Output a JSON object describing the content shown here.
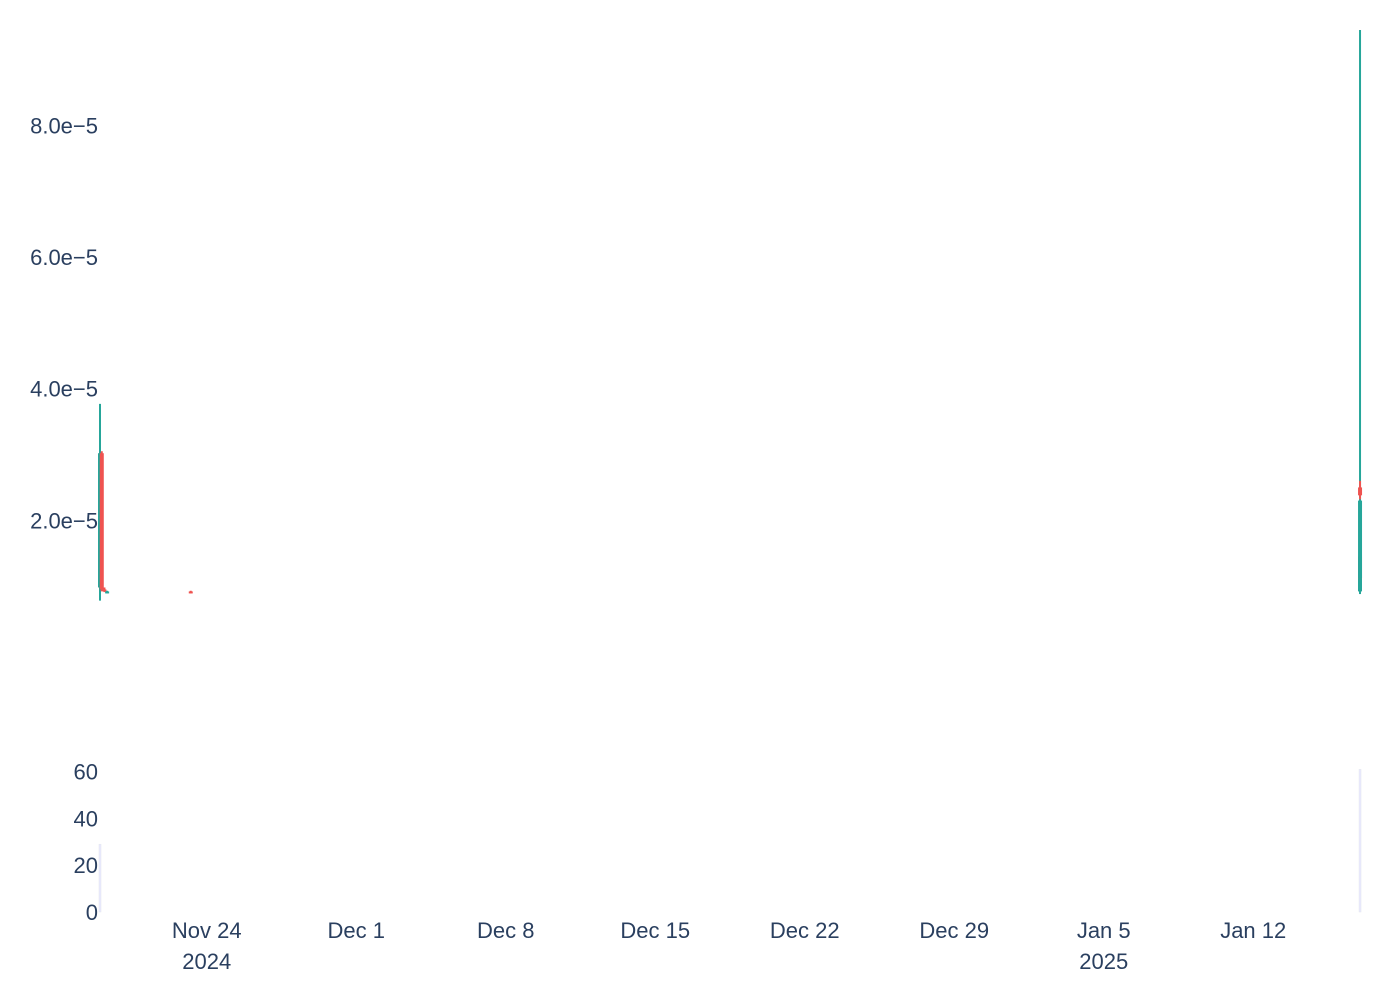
{
  "chart_data": [
    {
      "type": "candlestick",
      "title": "",
      "xlabel": "",
      "ylabel": "",
      "x_range": [
        "2024-11-19",
        "2025-01-17"
      ],
      "ylim": [
        3e-07,
        9.45e-05
      ],
      "yticks": [
        {
          "value": 2e-05,
          "label": "2.0e−5"
        },
        {
          "value": 4e-05,
          "label": "4.0e−5"
        },
        {
          "value": 6e-05,
          "label": "6.0e−5"
        },
        {
          "value": 8e-05,
          "label": "8.0e−5"
        }
      ],
      "grid": false,
      "colors": {
        "increasing": "#26a69a",
        "decreasing": "#ef5350"
      },
      "candles": [
        {
          "t": "2024-11-19T00:00",
          "open": 9.8e-06,
          "high": 3.77e-05,
          "low": 7.8e-06,
          "close": 3.02e-05
        },
        {
          "t": "2024-11-19T02:00",
          "open": 3.02e-05,
          "high": 3.05e-05,
          "low": 9.2e-06,
          "close": 9.5e-06
        },
        {
          "t": "2024-11-19T05:00",
          "open": 9.5e-06,
          "high": 9.8e-06,
          "low": 9.1e-06,
          "close": 9.2e-06
        },
        {
          "t": "2024-11-19T08:00",
          "open": 9.1e-06,
          "high": 9.3e-06,
          "low": 8.9e-06,
          "close": 9.2e-06
        },
        {
          "t": "2024-11-23T06:00",
          "open": 9.2e-06,
          "high": 9.3e-06,
          "low": 8.9e-06,
          "close": 9e-06
        },
        {
          "t": "2025-01-17T00:00",
          "open": 9.2e-06,
          "high": 1.7e-05,
          "low": 8.8e-06,
          "close": 1.45e-05
        },
        {
          "t": "2025-01-17T00:01",
          "open": 1.45e-05,
          "high": 1.52e-05,
          "low": 1.08e-05,
          "close": 1.12e-05
        },
        {
          "t": "2025-01-17T00:02",
          "open": 1.12e-05,
          "high": 9.45e-05,
          "low": 9.2e-06,
          "close": 2.3e-05
        },
        {
          "t": "2025-01-17T00:03",
          "open": 2.5e-05,
          "high": 2.6e-05,
          "low": 2.32e-05,
          "close": 2.38e-05
        }
      ]
    },
    {
      "type": "bar",
      "title": "",
      "xlabel": "",
      "ylabel": "",
      "ylim": [
        0,
        65
      ],
      "yticks": [
        {
          "value": 0,
          "label": "0"
        },
        {
          "value": 20,
          "label": "20"
        },
        {
          "value": 40,
          "label": "40"
        },
        {
          "value": 60,
          "label": "60"
        }
      ],
      "xticks": [
        {
          "date": "2024-11-24",
          "label": "Nov 24",
          "sublabel": "2024"
        },
        {
          "date": "2024-12-01",
          "label": "Dec 1",
          "sublabel": ""
        },
        {
          "date": "2024-12-08",
          "label": "Dec 8",
          "sublabel": ""
        },
        {
          "date": "2024-12-15",
          "label": "Dec 15",
          "sublabel": ""
        },
        {
          "date": "2024-12-22",
          "label": "Dec 22",
          "sublabel": ""
        },
        {
          "date": "2024-12-29",
          "label": "Dec 29",
          "sublabel": ""
        },
        {
          "date": "2025-01-05",
          "label": "Jan 5",
          "sublabel": "2025"
        },
        {
          "date": "2025-01-12",
          "label": "Jan 12",
          "sublabel": ""
        }
      ],
      "bar_color": "rgba(99,110,250,0.15)",
      "bars": [
        {
          "t": "2024-11-19T00:00",
          "value": 29
        },
        {
          "t": "2025-01-17T00:02",
          "value": 61
        }
      ]
    }
  ]
}
